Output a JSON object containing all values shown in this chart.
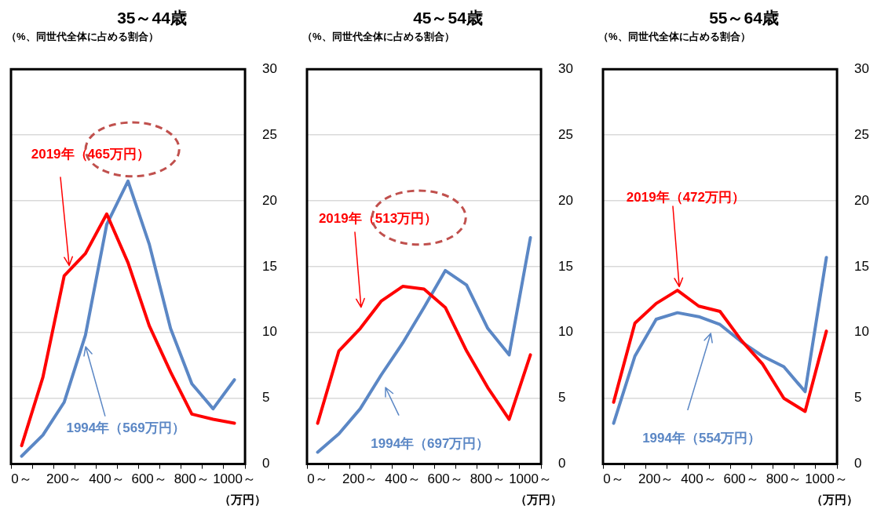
{
  "chart_data": [
    {
      "type": "line",
      "title": "35～44歳",
      "ylabel": "（%、同世代全体に占める割合）",
      "xlabel": "（万円）",
      "categories": [
        "0～",
        null,
        "200～",
        null,
        "400～",
        null,
        "600～",
        null,
        "800～",
        null,
        "1000～"
      ],
      "ylim": [
        0,
        30
      ],
      "yticks": [
        0,
        5,
        10,
        15,
        20,
        25,
        30
      ],
      "grid": "y",
      "marker": "none",
      "series": [
        {
          "name": "2019年（465万円）",
          "color": "#ff0000",
          "values": [
            1.4,
            6.6,
            14.3,
            16.0,
            19.0,
            15.3,
            10.5,
            7.0,
            3.8,
            3.4,
            3.1
          ]
        },
        {
          "name": "1994年（569万円）",
          "color": "#5b87c5",
          "values": [
            0.6,
            2.2,
            4.7,
            9.8,
            18.2,
            21.5,
            16.7,
            10.3,
            6.1,
            4.2,
            6.4
          ]
        }
      ]
    },
    {
      "type": "line",
      "title": "45～54歳",
      "ylabel": "（%、同世代全体に占める割合）",
      "xlabel": "（万円）",
      "categories": [
        "0～",
        null,
        "200～",
        null,
        "400～",
        null,
        "600～",
        null,
        "800～",
        null,
        "1000～"
      ],
      "ylim": [
        0,
        30
      ],
      "yticks": [
        0,
        5,
        10,
        15,
        20,
        25,
        30
      ],
      "grid": "y",
      "marker": "none",
      "series": [
        {
          "name": "2019年（513万円）",
          "color": "#ff0000",
          "values": [
            3.1,
            8.6,
            10.3,
            12.4,
            13.5,
            13.3,
            11.9,
            8.6,
            5.8,
            3.4,
            8.3
          ]
        },
        {
          "name": "1994年（697万円）",
          "color": "#5b87c5",
          "values": [
            0.9,
            2.3,
            4.2,
            6.8,
            9.2,
            11.9,
            14.7,
            13.6,
            10.3,
            8.3,
            17.2
          ]
        }
      ]
    },
    {
      "type": "line",
      "title": "55～64歳",
      "ylabel": "（%、同世代全体に占める割合）",
      "xlabel": "（万円）",
      "categories": [
        "0～",
        null,
        "200～",
        null,
        "400～",
        null,
        "600～",
        null,
        "800～",
        null,
        "1000～"
      ],
      "ylim": [
        0,
        30
      ],
      "yticks": [
        0,
        5,
        10,
        15,
        20,
        25,
        30
      ],
      "grid": "y",
      "marker": "none",
      "series": [
        {
          "name": "2019年（472万円）",
          "color": "#ff0000",
          "values": [
            4.7,
            10.7,
            12.2,
            13.2,
            12.0,
            11.6,
            9.4,
            7.6,
            5.0,
            4.0,
            10.1
          ]
        },
        {
          "name": "1994年（554万円）",
          "color": "#5b87c5",
          "values": [
            3.1,
            8.2,
            11.0,
            11.5,
            11.2,
            10.6,
            9.3,
            8.2,
            7.4,
            5.5,
            15.7
          ]
        }
      ]
    }
  ]
}
